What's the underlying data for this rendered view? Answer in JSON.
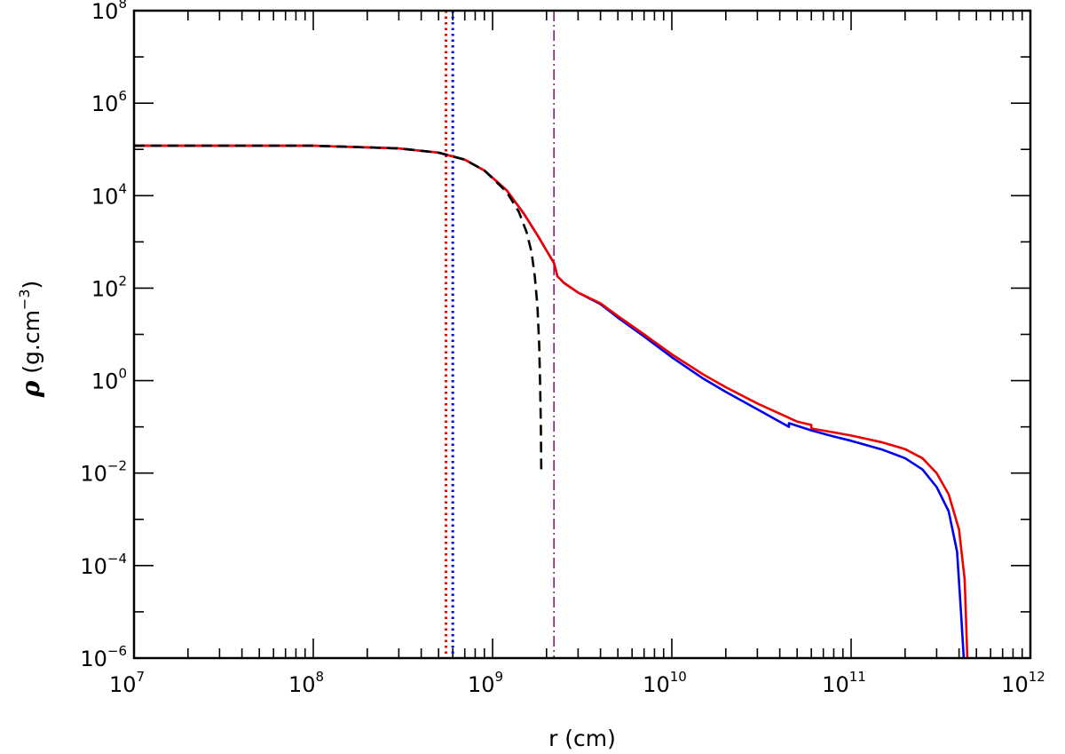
{
  "chart_data": {
    "type": "line",
    "title": "",
    "xlabel": "r  (cm)",
    "ylabel": {
      "symbol": "ρ",
      "text": "  (g.cm",
      "superscript": "−3",
      "close": ")"
    },
    "x_scale": "log",
    "y_scale": "log",
    "xlim": [
      10000000.0,
      1000000000000.0
    ],
    "ylim": [
      1e-06,
      100000000.0
    ],
    "x_ticks": [
      {
        "base": "10",
        "exp": "7",
        "value": 10000000.0
      },
      {
        "base": "10",
        "exp": "8",
        "value": 100000000.0
      },
      {
        "base": "10",
        "exp": "9",
        "value": 1000000000.0
      },
      {
        "base": "10",
        "exp": "10",
        "value": 10000000000.0
      },
      {
        "base": "10",
        "exp": "11",
        "value": 100000000000.0
      },
      {
        "base": "10",
        "exp": "12",
        "value": 1000000000000.0
      }
    ],
    "y_ticks": [
      {
        "base": "10",
        "exp": "−6",
        "value": 1e-06
      },
      {
        "base": "10",
        "exp": "−4",
        "value": 0.0001
      },
      {
        "base": "10",
        "exp": "−2",
        "value": 0.01
      },
      {
        "base": "10",
        "exp": "0",
        "value": 1
      },
      {
        "base": "10",
        "exp": "2",
        "value": 100.0
      },
      {
        "base": "10",
        "exp": "4",
        "value": 10000.0
      },
      {
        "base": "10",
        "exp": "6",
        "value": 1000000.0
      },
      {
        "base": "10",
        "exp": "8",
        "value": 100000000.0
      }
    ],
    "grid": false,
    "legend": "none",
    "series": [
      {
        "color": "#0000ee",
        "style": "solid",
        "points": [
          [
            10000000.0,
            120000.0
          ],
          [
            100000000.0,
            120000.0
          ],
          [
            300000000.0,
            105000.0
          ],
          [
            500000000.0,
            85000.0
          ],
          [
            700000000.0,
            60000.0
          ],
          [
            900000000.0,
            35000.0
          ],
          [
            1200000000.0,
            13000.0
          ],
          [
            1500000000.0,
            4000.0
          ],
          [
            1800000000.0,
            1300.0
          ],
          [
            2000000000.0,
            650.0
          ],
          [
            2200000000.0,
            350.0
          ],
          [
            2300000000.0,
            180.0
          ],
          [
            2500000000.0,
            130.0
          ],
          [
            3000000000.0,
            80.0
          ],
          [
            4000000000.0,
            45.0
          ],
          [
            5000000000.0,
            23.0
          ],
          [
            7000000000.0,
            9.0
          ],
          [
            10000000000.0,
            3.2
          ],
          [
            15000000000.0,
            1.1
          ],
          [
            20000000000.0,
            0.57
          ],
          [
            30000000000.0,
            0.24
          ],
          [
            45000000000.0,
            0.1
          ],
          [
            45000000000.0,
            0.12
          ],
          [
            60000000000.0,
            0.084
          ],
          [
            80000000000.0,
            0.062
          ],
          [
            100000000000.0,
            0.05
          ],
          [
            150000000000.0,
            0.032
          ],
          [
            200000000000.0,
            0.021
          ],
          [
            250000000000.0,
            0.012
          ],
          [
            300000000000.0,
            0.005
          ],
          [
            350000000000.0,
            0.0015
          ],
          [
            390000000000.0,
            0.0002
          ],
          [
            410000000000.0,
            1e-05
          ],
          [
            425000000000.0,
            1e-06
          ]
        ]
      },
      {
        "color": "#ee0000",
        "style": "solid",
        "points": [
          [
            10000000.0,
            120000.0
          ],
          [
            100000000.0,
            120000.0
          ],
          [
            300000000.0,
            105000.0
          ],
          [
            500000000.0,
            85000.0
          ],
          [
            700000000.0,
            60000.0
          ],
          [
            900000000.0,
            35000.0
          ],
          [
            1200000000.0,
            13000.0
          ],
          [
            1500000000.0,
            4000.0
          ],
          [
            1800000000.0,
            1300.0
          ],
          [
            2000000000.0,
            650.0
          ],
          [
            2200000000.0,
            350.0
          ],
          [
            2300000000.0,
            180.0
          ],
          [
            2500000000.0,
            130.0
          ],
          [
            3000000000.0,
            80.0
          ],
          [
            4000000000.0,
            47.0
          ],
          [
            5000000000.0,
            25.0
          ],
          [
            7000000000.0,
            10.0
          ],
          [
            10000000000.0,
            3.7
          ],
          [
            15000000000.0,
            1.35
          ],
          [
            20000000000.0,
            0.72
          ],
          [
            30000000000.0,
            0.32
          ],
          [
            50000000000.0,
            0.13
          ],
          [
            60000000000.0,
            0.11
          ],
          [
            60000000000.0,
            0.092
          ],
          [
            80000000000.0,
            0.076
          ],
          [
            100000000000.0,
            0.065
          ],
          [
            150000000000.0,
            0.046
          ],
          [
            200000000000.0,
            0.033
          ],
          [
            250000000000.0,
            0.021
          ],
          [
            300000000000.0,
            0.01
          ],
          [
            350000000000.0,
            0.0035
          ],
          [
            400000000000.0,
            0.0006
          ],
          [
            430000000000.0,
            5e-05
          ],
          [
            445000000000.0,
            1e-06
          ]
        ]
      },
      {
        "color": "#000000",
        "style": "dashed",
        "points": [
          [
            10000000.0,
            120000.0
          ],
          [
            100000000.0,
            120000.0
          ],
          [
            300000000.0,
            105000.0
          ],
          [
            500000000.0,
            85000.0
          ],
          [
            700000000.0,
            60000.0
          ],
          [
            900000000.0,
            35000.0
          ],
          [
            1200000000.0,
            12000.0
          ],
          [
            1400000000.0,
            4500.0
          ],
          [
            1550000000.0,
            1600.0
          ],
          [
            1650000000.0,
            600.0
          ],
          [
            1720000000.0,
            180.0
          ],
          [
            1780000000.0,
            40.0
          ],
          [
            1820000000.0,
            6.0
          ],
          [
            1840000000.0,
            1.0
          ],
          [
            1860000000.0,
            0.1
          ],
          [
            1870000000.0,
            0.01
          ]
        ]
      }
    ],
    "vertical_lines": [
      {
        "x": 550000000.0,
        "color": "#ee0000",
        "style": "dotted"
      },
      {
        "x": 600000000.0,
        "color": "#0000ee",
        "style": "dotted"
      },
      {
        "x": 2200000000.0,
        "color": "#8b1a7a",
        "style": "dashdot"
      }
    ]
  }
}
